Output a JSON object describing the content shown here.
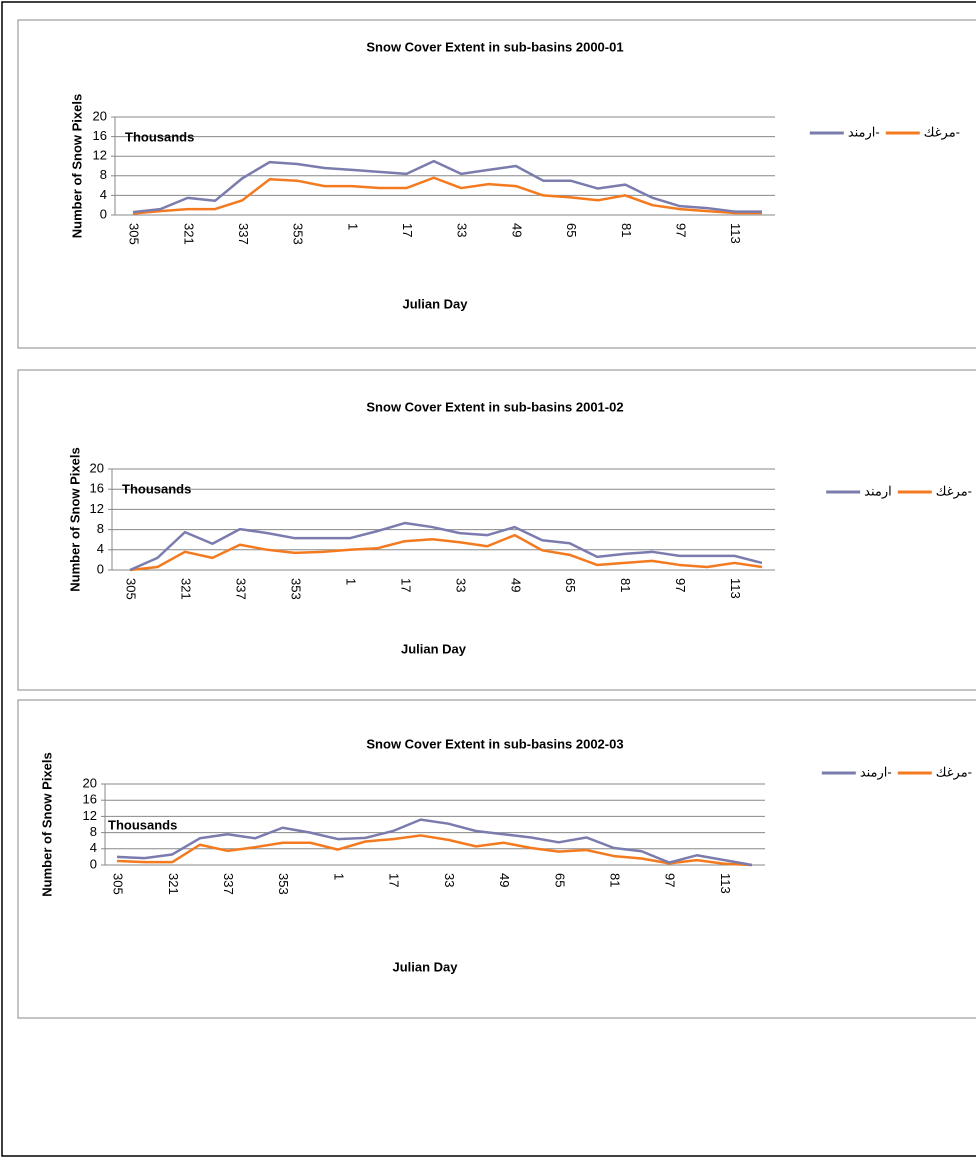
{
  "chart_data": [
    {
      "type": "line",
      "title": "Snow Cover Extent in sub-basins 2000-01",
      "y_label": "Number of Snow Pixels",
      "x_label": "Julian Day",
      "annotation": "Thousands",
      "categories": [
        "305",
        null,
        "321",
        null,
        "337",
        null,
        "353",
        null,
        "1",
        null,
        "17",
        null,
        "33",
        null,
        "49",
        null,
        "65",
        null,
        "81",
        null,
        "97",
        null,
        "113",
        null
      ],
      "series": [
        {
          "name": "مرغك-",
          "color": "#f47a20",
          "values": [
            0.3,
            0.8,
            1.2,
            1.2,
            3,
            7.3,
            7,
            5.9,
            5.9,
            5.5,
            5.5,
            7.6,
            5.5,
            6.3,
            5.9,
            4,
            3.6,
            3,
            4,
            2,
            1.2,
            0.8,
            0.4,
            0.4
          ]
        },
        {
          "name": "ارمند-",
          "color": "#7b7cae",
          "values": [
            0.6,
            1.2,
            3.5,
            2.9,
            7.5,
            10.8,
            10.4,
            9.6,
            9.2,
            8.8,
            8.4,
            11,
            8.4,
            9.2,
            10,
            7,
            7,
            5.4,
            6.2,
            3.5,
            1.8,
            1.4,
            0.7,
            0.7
          ]
        }
      ],
      "ylim": [
        0,
        20
      ],
      "yticks": [
        0,
        4,
        8,
        12,
        16,
        20
      ],
      "grid": true,
      "legend": "right"
    },
    {
      "type": "line",
      "title": "Snow Cover Extent in sub-basins 2001-02",
      "y_label": "Number of Snow Pixels",
      "x_label": "Julian Day",
      "annotation": "Thousands",
      "categories": [
        "305",
        null,
        "321",
        null,
        "337",
        null,
        "353",
        null,
        "1",
        null,
        "17",
        null,
        "33",
        null,
        "49",
        null,
        "65",
        null,
        "81",
        null,
        "97",
        null,
        "113",
        null
      ],
      "series": [
        {
          "name": "مرغك-",
          "color": "#f47a20",
          "values": [
            0,
            0.6,
            3.6,
            2.4,
            5,
            4,
            3.4,
            3.6,
            4,
            4.3,
            5.7,
            6.1,
            5.5,
            4.7,
            6.9,
            3.9,
            3,
            1,
            1.4,
            1.8,
            1,
            0.6,
            1.4,
            0.6
          ]
        },
        {
          "name": "ارمند",
          "color": "#7b7cae",
          "values": [
            0,
            2.4,
            7.5,
            5.2,
            8.1,
            7.3,
            6.3,
            6.3,
            6.3,
            7.7,
            9.3,
            8.5,
            7.3,
            6.9,
            8.5,
            5.9,
            5.3,
            2.6,
            3.2,
            3.6,
            2.8,
            2.8,
            2.8,
            1.4
          ]
        }
      ],
      "ylim": [
        0,
        20
      ],
      "yticks": [
        0,
        4,
        8,
        12,
        16,
        20
      ],
      "grid": true,
      "legend": "right"
    },
    {
      "type": "line",
      "title": "Snow Cover Extent in sub-basins 2002-03",
      "y_label": "Number of Snow Pixels",
      "x_label": "Julian Day",
      "annotation": "Thousands",
      "categories": [
        "305",
        null,
        "321",
        null,
        "337",
        null,
        "353",
        null,
        "1",
        null,
        "17",
        null,
        "33",
        null,
        "49",
        null,
        "65",
        null,
        "81",
        null,
        "97",
        null,
        "113",
        null
      ],
      "series": [
        {
          "name": "مرغك-",
          "color": "#f47a20",
          "values": [
            1,
            0.7,
            0.7,
            5,
            3.5,
            4.4,
            5.5,
            5.5,
            3.8,
            5.8,
            6.4,
            7.3,
            6.2,
            4.6,
            5.5,
            4.2,
            3.3,
            3.7,
            2.2,
            1.6,
            0.4,
            1.2,
            0.3,
            0
          ]
        },
        {
          "name": "ارمند-",
          "color": "#7b7cae",
          "values": [
            2,
            1.7,
            2.6,
            6.6,
            7.6,
            6.6,
            9.2,
            8,
            6.4,
            6.7,
            8.4,
            11.2,
            10.2,
            8.4,
            7.6,
            6.8,
            5.6,
            6.8,
            4.2,
            3.4,
            0.6,
            2.4,
            1.2,
            0
          ]
        }
      ],
      "ylim": [
        0,
        20
      ],
      "yticks": [
        0,
        4,
        8,
        12,
        16,
        20
      ],
      "grid": true,
      "legend": "right"
    }
  ]
}
